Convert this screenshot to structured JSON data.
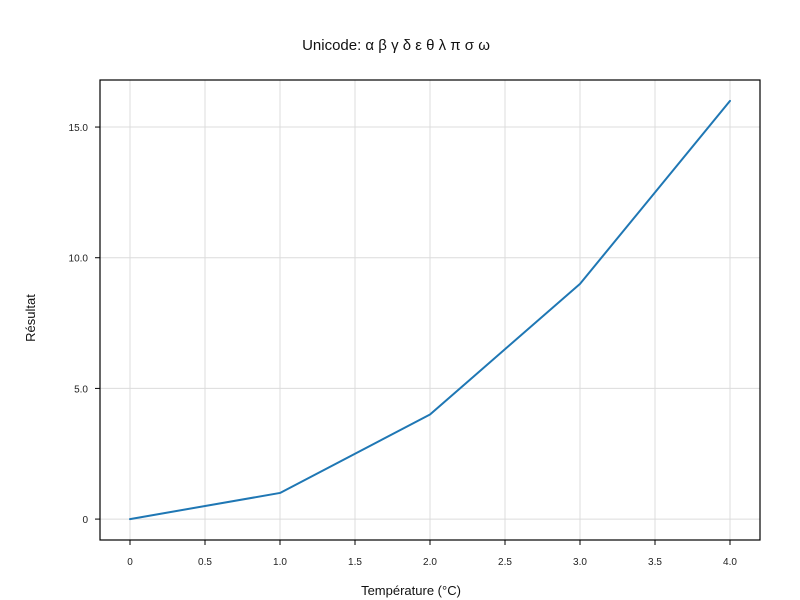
{
  "chart_data": {
    "type": "line",
    "title": "Unicode: α β γ δ ε θ λ π σ ω",
    "xlabel": "Température (°C)",
    "ylabel": "Résultat",
    "x": [
      0,
      1,
      2,
      3,
      4
    ],
    "series": [
      {
        "values": [
          0,
          1,
          4,
          9,
          16
        ],
        "color": "#1f77b4"
      }
    ],
    "xlim": [
      -0.2,
      4.2
    ],
    "ylim": [
      -0.8,
      16.8
    ],
    "xticks": [
      0,
      0.5,
      1,
      1.5,
      2,
      2.5,
      3,
      3.5,
      4
    ],
    "xtick_labels": [
      "0",
      "0.5",
      "1.0",
      "1.5",
      "2.0",
      "2.5",
      "3.0",
      "3.5",
      "4.0"
    ],
    "yticks": [
      0,
      5,
      10,
      15
    ],
    "ytick_labels": [
      "0",
      "5.0",
      "10.0",
      "15.0"
    ],
    "grid": true,
    "colors": {
      "frame": "#000000",
      "grid": "#dcdcdc",
      "line": "#1f77b4"
    }
  }
}
